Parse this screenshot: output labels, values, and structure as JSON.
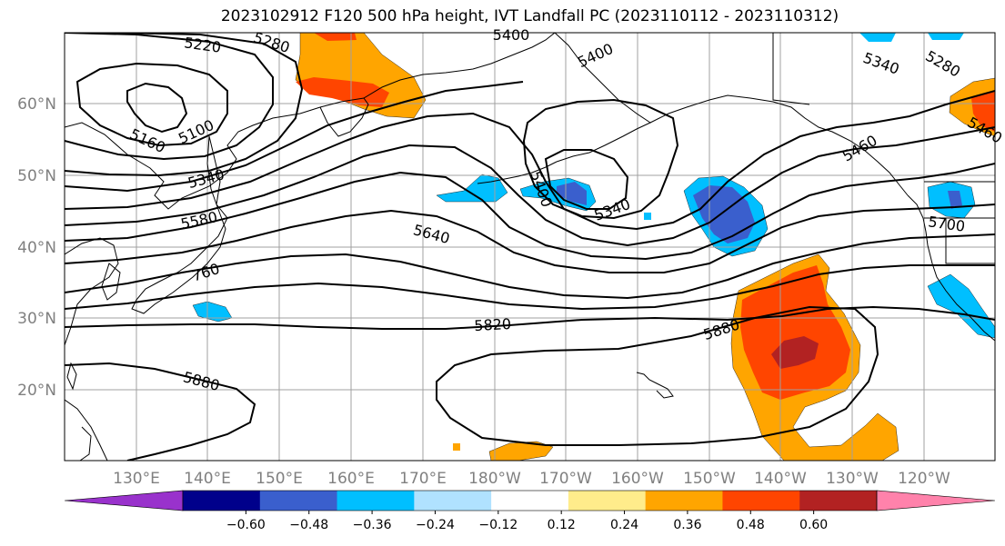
{
  "title": "2023102912 F120 500 hPa height, IVT Landfall PC (2023110112 - 2023110312)",
  "colors": {
    "coast": "#000000",
    "contour": "#000000",
    "grid": "#a0a0a0",
    "axis_text": "#808080",
    "background": "#ffffff"
  },
  "map": {
    "lon_labels": [
      "130°E",
      "140°E",
      "150°E",
      "160°E",
      "170°E",
      "180°W",
      "170°W",
      "160°W",
      "150°W",
      "140°W",
      "130°W",
      "120°W"
    ],
    "lat_labels": [
      "60°N",
      "50°N",
      "40°N",
      "30°N",
      "20°N"
    ],
    "contour_labels": [
      "5220",
      "5280",
      "5400",
      "5400",
      "5340",
      "5280",
      "5460",
      "5160",
      "5100",
      "5340",
      "5580",
      "760",
      "5400",
      "5340",
      "5640",
      "5820",
      "5880",
      "5880",
      "5460",
      "5700"
    ]
  },
  "colorbar": {
    "ticks": [
      "−0.60",
      "−0.48",
      "−0.36",
      "−0.24",
      "−0.12",
      "0.12",
      "0.24",
      "0.36",
      "0.48",
      "0.60"
    ],
    "bins": [
      {
        "color": "#9932cc"
      },
      {
        "color": "#00008b"
      },
      {
        "color": "#3a5fcd"
      },
      {
        "color": "#00bfff"
      },
      {
        "color": "#b0e2ff"
      },
      {
        "color": "#ffffff"
      },
      {
        "color": "#ffec8b"
      },
      {
        "color": "#ffa500"
      },
      {
        "color": "#ff4500"
      },
      {
        "color": "#b22222"
      },
      {
        "color": "#ff82ab"
      }
    ]
  }
}
